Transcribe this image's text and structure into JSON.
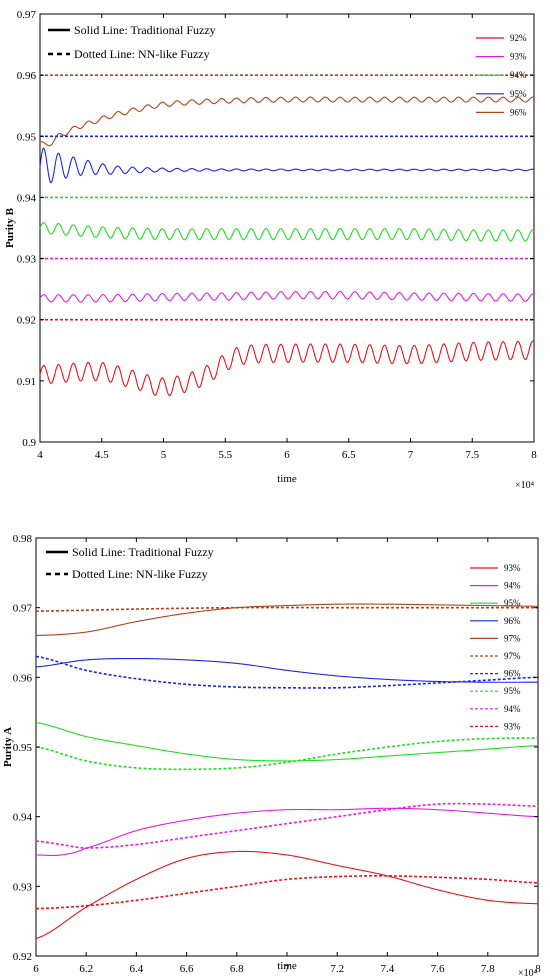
{
  "chart_data": [
    {
      "type": "line",
      "xlabel": "time",
      "ylabel": "Purity B",
      "x_exponent_label": "×10⁴",
      "xlim": [
        4,
        8
      ],
      "ylim": [
        0.9,
        0.97
      ],
      "xticks": [
        4,
        4.5,
        5,
        5.5,
        6,
        6.5,
        7,
        7.5,
        8
      ],
      "xtick_labels": [
        "4",
        "4.5",
        "5",
        "5.5",
        "6",
        "6.5",
        "7",
        "7.5",
        "8"
      ],
      "yticks": [
        0.9,
        0.91,
        0.92,
        0.93,
        0.94,
        0.95,
        0.96,
        0.97
      ],
      "ytick_labels": [
        "0.9",
        "0.91",
        "0.92",
        "0.93",
        "0.94",
        "0.95",
        "0.96",
        "0.97"
      ],
      "style_notes": [
        "Solid Line: Traditional Fuzzy",
        "Dotted Line: NN-like Fuzzy"
      ],
      "legend_position": "top-right",
      "series": [
        {
          "name": "92%",
          "color": "#e8141c",
          "dash": false,
          "x": [
            4.0,
            4.5,
            4.8,
            5.0,
            5.3,
            5.6,
            6.0,
            6.5,
            7.0,
            7.5,
            8.0
          ],
          "y": [
            0.911,
            0.9115,
            0.91,
            0.909,
            0.9105,
            0.914,
            0.9145,
            0.9145,
            0.9143,
            0.9148,
            0.915
          ],
          "osc": 0.0015
        },
        {
          "name": "93%",
          "color": "#e21ee2",
          "dash": false,
          "x": [
            4.0,
            4.5,
            5.0,
            5.5,
            6.0,
            6.5,
            7.0,
            7.5,
            8.0
          ],
          "y": [
            0.9235,
            0.9235,
            0.9237,
            0.9238,
            0.924,
            0.924,
            0.9238,
            0.9237,
            0.9236
          ],
          "osc": 0.0006
        },
        {
          "name": "94%",
          "color": "#22dd22",
          "dash": false,
          "x": [
            4.0,
            4.5,
            5.0,
            5.5,
            6.0,
            6.5,
            7.0,
            7.5,
            8.0
          ],
          "y": [
            0.935,
            0.9343,
            0.934,
            0.934,
            0.934,
            0.934,
            0.934,
            0.9338,
            0.9338
          ],
          "osc": 0.0009
        },
        {
          "name": "95%",
          "color": "#1c28e0",
          "dash": false,
          "x": [
            4.0,
            4.3,
            4.6,
            5.0,
            5.5,
            6.0,
            6.5,
            7.0,
            7.5,
            8.0
          ],
          "y": [
            0.945,
            0.945,
            0.9445,
            0.9445,
            0.9445,
            0.9445,
            0.9445,
            0.9445,
            0.9445,
            0.9445
          ],
          "osc": 0.0032
        },
        {
          "name": "96%",
          "color": "#b0441a",
          "dash": false,
          "x": [
            4.0,
            4.05,
            4.15,
            4.3,
            4.6,
            5.0,
            5.5,
            6.0,
            6.5,
            7.0,
            7.5,
            8.0
          ],
          "y": [
            0.949,
            0.9485,
            0.95,
            0.9515,
            0.9535,
            0.9552,
            0.9558,
            0.956,
            0.956,
            0.956,
            0.956,
            0.956
          ],
          "osc": 0.0004
        },
        {
          "name": "",
          "color": "#e8141c",
          "dash": true,
          "x": [
            4,
            8
          ],
          "y": [
            0.92,
            0.92
          ],
          "osc": 0
        },
        {
          "name": "",
          "color": "#e21ee2",
          "dash": true,
          "x": [
            4,
            8
          ],
          "y": [
            0.93,
            0.93
          ],
          "osc": 0
        },
        {
          "name": "",
          "color": "#22dd22",
          "dash": true,
          "x": [
            4,
            8
          ],
          "y": [
            0.94,
            0.94
          ],
          "osc": 0
        },
        {
          "name": "",
          "color": "#1c28e0",
          "dash": true,
          "x": [
            4,
            8
          ],
          "y": [
            0.95,
            0.95
          ],
          "osc": 0
        },
        {
          "name": "",
          "color": "#b0441a",
          "dash": true,
          "x": [
            4,
            8
          ],
          "y": [
            0.96,
            0.96
          ],
          "osc": 0
        }
      ]
    },
    {
      "type": "line",
      "xlabel": "time",
      "ylabel": "Purity A",
      "x_exponent_label": "×10⁴",
      "xlim": [
        6,
        8
      ],
      "ylim": [
        0.92,
        0.98
      ],
      "xticks": [
        6,
        6.2,
        6.4,
        6.6,
        6.8,
        7,
        7.2,
        7.4,
        7.6,
        7.8,
        8
      ],
      "xtick_labels": [
        "6",
        "6.2",
        "6.4",
        "6.6",
        "6.8",
        "7",
        "7.2",
        "7.4",
        "7.6",
        "7.8",
        "8"
      ],
      "yticks": [
        0.92,
        0.93,
        0.94,
        0.95,
        0.96,
        0.97,
        0.98
      ],
      "ytick_labels": [
        "0.92",
        "0.93",
        "0.94",
        "0.95",
        "0.96",
        "0.97",
        "0.98"
      ],
      "style_notes": [
        "Solid Line: Traditional Fuzzy",
        "Dotted Line: NN-like Fuzzy"
      ],
      "legend_position": "top-right",
      "series": [
        {
          "name": "93%",
          "color": "#e8141c",
          "dash": false,
          "x": [
            6.0,
            6.2,
            6.4,
            6.6,
            6.8,
            7.0,
            7.2,
            7.4,
            7.6,
            7.8,
            8.0
          ],
          "y": [
            0.9225,
            0.927,
            0.931,
            0.934,
            0.935,
            0.9345,
            0.933,
            0.9315,
            0.9295,
            0.928,
            0.9275
          ]
        },
        {
          "name": "94%",
          "color": "#e21ee2",
          "dash": false,
          "x": [
            6.0,
            6.1,
            6.2,
            6.4,
            6.6,
            6.8,
            7.0,
            7.2,
            7.4,
            7.6,
            7.8,
            8.0
          ],
          "y": [
            0.9345,
            0.9345,
            0.9355,
            0.938,
            0.9395,
            0.9405,
            0.941,
            0.941,
            0.9412,
            0.941,
            0.9405,
            0.94
          ]
        },
        {
          "name": "95%",
          "color": "#22dd22",
          "dash": false,
          "x": [
            6.0,
            6.2,
            6.4,
            6.6,
            6.8,
            7.0,
            7.2,
            7.4,
            7.6,
            7.8,
            8.0
          ],
          "y": [
            0.9535,
            0.9515,
            0.9502,
            0.949,
            0.9482,
            0.948,
            0.9482,
            0.9487,
            0.9492,
            0.9497,
            0.9502
          ]
        },
        {
          "name": "96%",
          "color": "#1c28e0",
          "dash": false,
          "x": [
            6.0,
            6.2,
            6.4,
            6.6,
            6.8,
            7.0,
            7.2,
            7.4,
            7.6,
            7.8,
            8.0
          ],
          "y": [
            0.9615,
            0.9625,
            0.9627,
            0.9625,
            0.962,
            0.961,
            0.9602,
            0.9597,
            0.9594,
            0.9593,
            0.9593
          ]
        },
        {
          "name": "97%",
          "color": "#b0441a",
          "dash": false,
          "x": [
            6.0,
            6.2,
            6.4,
            6.6,
            6.8,
            7.0,
            7.2,
            7.4,
            7.6,
            7.8,
            8.0
          ],
          "y": [
            0.966,
            0.9665,
            0.968,
            0.9692,
            0.97,
            0.9703,
            0.9705,
            0.9705,
            0.9704,
            0.9703,
            0.9702
          ]
        },
        {
          "name": "97%",
          "color": "#b0441a",
          "dash": true,
          "x": [
            6.0,
            6.4,
            6.8,
            7.2,
            7.6,
            8.0
          ],
          "y": [
            0.9695,
            0.9698,
            0.97,
            0.97,
            0.97,
            0.97
          ]
        },
        {
          "name": "96%",
          "color": "#1c28e0",
          "dash": true,
          "x": [
            6.0,
            6.2,
            6.4,
            6.6,
            6.8,
            7.0,
            7.2,
            7.4,
            7.6,
            7.8,
            8.0
          ],
          "y": [
            0.963,
            0.961,
            0.9598,
            0.959,
            0.9586,
            0.9585,
            0.9585,
            0.9588,
            0.9592,
            0.9596,
            0.96
          ]
        },
        {
          "name": "95%",
          "color": "#22dd22",
          "dash": true,
          "x": [
            6.0,
            6.2,
            6.4,
            6.6,
            6.8,
            7.0,
            7.2,
            7.4,
            7.6,
            7.8,
            8.0
          ],
          "y": [
            0.95,
            0.948,
            0.947,
            0.9468,
            0.947,
            0.9478,
            0.949,
            0.95,
            0.9508,
            0.9512,
            0.9513
          ]
        },
        {
          "name": "94%",
          "color": "#e21ee2",
          "dash": true,
          "x": [
            6.0,
            6.1,
            6.2,
            6.4,
            6.6,
            6.8,
            7.0,
            7.2,
            7.4,
            7.6,
            7.8,
            8.0
          ],
          "y": [
            0.9365,
            0.936,
            0.9355,
            0.936,
            0.937,
            0.938,
            0.939,
            0.94,
            0.941,
            0.9418,
            0.9418,
            0.9415
          ]
        },
        {
          "name": "93%",
          "color": "#e8141c",
          "dash": true,
          "x": [
            6.0,
            6.2,
            6.4,
            6.6,
            6.8,
            7.0,
            7.2,
            7.4,
            7.6,
            7.8,
            8.0
          ],
          "y": [
            0.9268,
            0.9272,
            0.928,
            0.929,
            0.93,
            0.931,
            0.9314,
            0.9315,
            0.9313,
            0.931,
            0.9305
          ]
        }
      ]
    }
  ]
}
